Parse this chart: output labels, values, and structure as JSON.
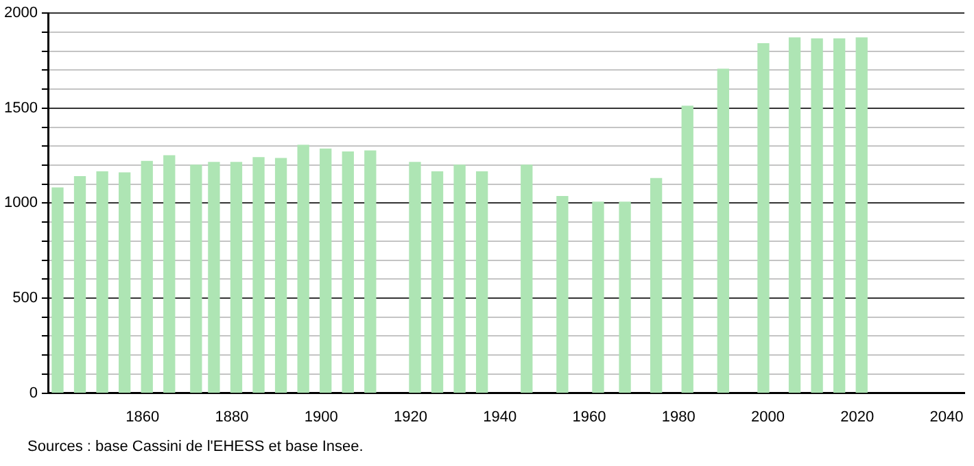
{
  "chart_data": {
    "type": "bar",
    "x": [
      1841,
      1846,
      1851,
      1856,
      1861,
      1866,
      1872,
      1876,
      1881,
      1886,
      1891,
      1896,
      1901,
      1906,
      1911,
      1921,
      1926,
      1931,
      1936,
      1946,
      1954,
      1962,
      1968,
      1975,
      1982,
      1990,
      1999,
      2006,
      2011,
      2016,
      2021
    ],
    "values": [
      1080,
      1140,
      1165,
      1160,
      1220,
      1250,
      1200,
      1215,
      1215,
      1240,
      1235,
      1305,
      1285,
      1270,
      1275,
      1215,
      1165,
      1200,
      1165,
      1200,
      1035,
      1005,
      1005,
      1130,
      1510,
      1705,
      1840,
      1870,
      1865,
      1865,
      1870
    ],
    "color": "#aee5b4",
    "xlim": [
      1839,
      2044
    ],
    "xticks": [
      1860,
      1880,
      1900,
      1920,
      1940,
      1960,
      1980,
      2000,
      2020,
      2040
    ],
    "ylim": [
      0,
      2000
    ],
    "yticks": [
      0,
      {
        "value": 100,
        "label": null
      },
      {
        "value": 200,
        "label": null
      },
      {
        "value": 300,
        "label": null
      },
      {
        "value": 400,
        "label": null
      },
      500,
      {
        "value": 600,
        "label": null
      },
      {
        "value": 700,
        "label": null
      },
      {
        "value": 800,
        "label": null
      },
      {
        "value": 900,
        "label": null
      },
      1000,
      {
        "value": 1100,
        "label": null
      },
      {
        "value": 1200,
        "label": null
      },
      {
        "value": 1300,
        "label": null
      },
      {
        "value": 1400,
        "label": null
      },
      1500,
      {
        "value": 1600,
        "label": null
      },
      {
        "value": 1700,
        "label": null
      },
      {
        "value": 1800,
        "label": null
      },
      {
        "value": 1900,
        "label": null
      },
      2000
    ],
    "grid": "y",
    "annotations": [
      "Sources : base Cassini de l'EHESS et base Insee."
    ]
  }
}
